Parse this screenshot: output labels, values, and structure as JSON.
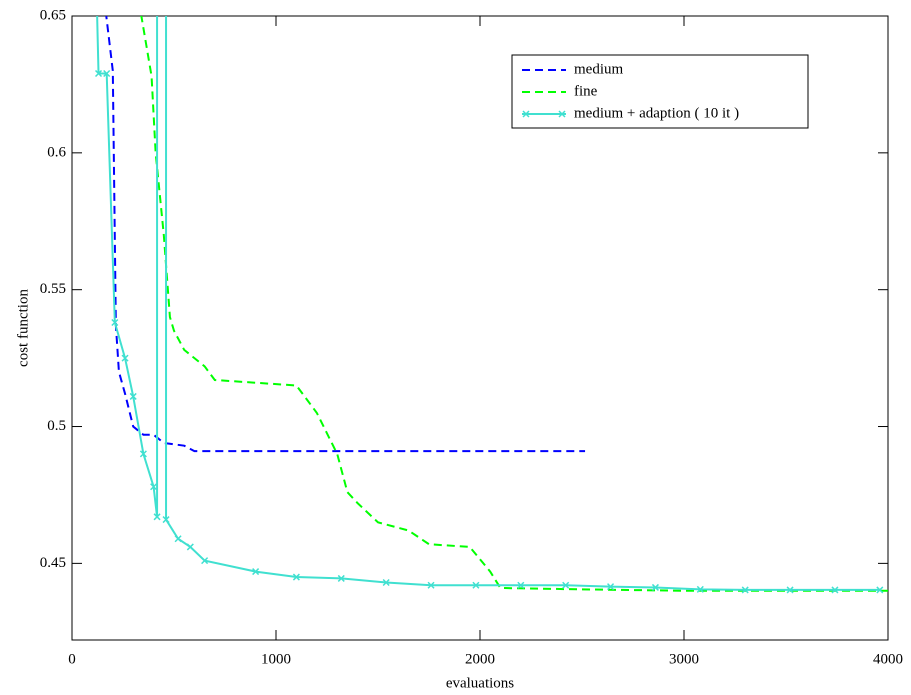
{
  "chart_data": {
    "type": "line",
    "xlabel": "evaluations",
    "ylabel": "cost function",
    "xlim": [
      0,
      4000
    ],
    "ylim": [
      0.422,
      0.65
    ],
    "xticks": [
      0,
      1000,
      2000,
      3000,
      4000
    ],
    "yticks": [
      0.45,
      0.5,
      0.55,
      0.6,
      0.65
    ],
    "legend": "upper right",
    "series": [
      {
        "name": "medium",
        "color": "#0000ff",
        "dash": true,
        "marker": false,
        "x": [
          120,
          200,
          215,
          230,
          260,
          300,
          350,
          400,
          450,
          550,
          600,
          2515
        ],
        "values": [
          0.68,
          0.63,
          0.537,
          0.52,
          0.512,
          0.5,
          0.497,
          0.497,
          0.494,
          0.493,
          0.491,
          0.491
        ]
      },
      {
        "name": "fine",
        "color": "#00ff00",
        "dash": true,
        "marker": false,
        "x": [
          320,
          340,
          390,
          410,
          430,
          450,
          470,
          480,
          500,
          550,
          650,
          700,
          900,
          1100,
          1200,
          1300,
          1350,
          1400,
          1500,
          1650,
          1750,
          1950,
          2050,
          2100,
          2500,
          3000,
          4000
        ],
        "values": [
          0.66,
          0.65,
          0.628,
          0.6,
          0.585,
          0.57,
          0.55,
          0.54,
          0.535,
          0.528,
          0.522,
          0.517,
          0.516,
          0.515,
          0.505,
          0.49,
          0.476,
          0.472,
          0.465,
          0.462,
          0.457,
          0.456,
          0.447,
          0.441,
          0.4405,
          0.44,
          0.44
        ]
      },
      {
        "name": "medium + adaption ( 10 it )",
        "color": "#40e0d0",
        "dash": false,
        "marker": true,
        "x": [
          120,
          130,
          170,
          210,
          260,
          300,
          350,
          400,
          417,
          417,
          461,
          461,
          520,
          580,
          650,
          900,
          1100,
          1320,
          1540,
          1760,
          1980,
          2200,
          2420,
          2640,
          2860,
          3080,
          3300,
          3520,
          3740,
          3960
        ],
        "values": [
          0.66,
          0.629,
          0.629,
          0.538,
          0.525,
          0.511,
          0.49,
          0.478,
          0.467,
          0.7,
          0.7,
          0.466,
          0.459,
          0.456,
          0.451,
          0.447,
          0.445,
          0.4445,
          0.443,
          0.442,
          0.442,
          0.442,
          0.442,
          0.4415,
          0.4412,
          0.4405,
          0.4403,
          0.4403,
          0.4403,
          0.4403
        ]
      }
    ]
  }
}
